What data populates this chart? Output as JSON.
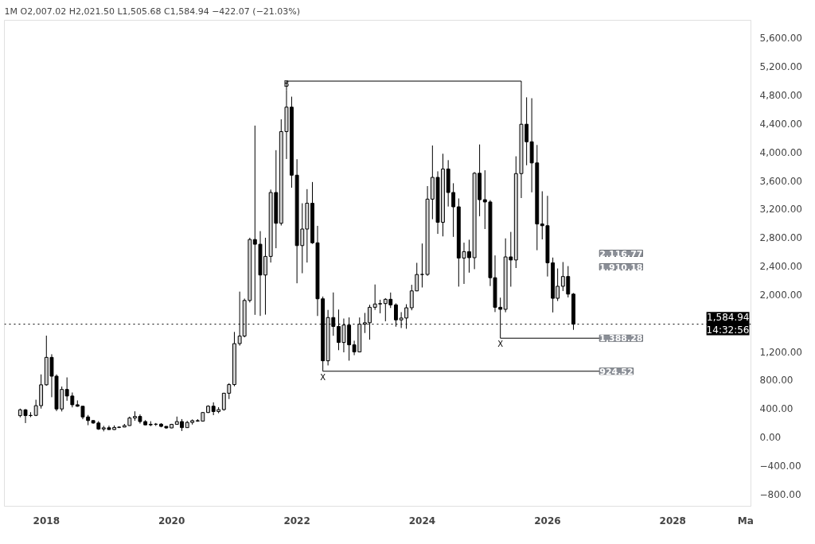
{
  "chart_data": {
    "type": "candlestick",
    "title": "1M  O2,007.02  H2,021.50  L1,505.68  C1,584.94  −422.07 (−21.03%)",
    "x": [
      "2017-08",
      "2017-09",
      "2017-10",
      "2017-11",
      "2017-12",
      "2018-01",
      "2018-02",
      "2018-03",
      "2018-04",
      "2018-05",
      "2018-06",
      "2018-07",
      "2018-08",
      "2018-09",
      "2018-10",
      "2018-11",
      "2018-12",
      "2019-01",
      "2019-02",
      "2019-03",
      "2019-04",
      "2019-05",
      "2019-06",
      "2019-07",
      "2019-08",
      "2019-09",
      "2019-10",
      "2019-11",
      "2019-12",
      "2020-01",
      "2020-02",
      "2020-03",
      "2020-04",
      "2020-05",
      "2020-06",
      "2020-07",
      "2020-08",
      "2020-09",
      "2020-10",
      "2020-11",
      "2020-12",
      "2021-01",
      "2021-02",
      "2021-03",
      "2021-04",
      "2021-05",
      "2021-06",
      "2021-07",
      "2021-08",
      "2021-09",
      "2021-10",
      "2021-11",
      "2021-12",
      "2022-01",
      "2022-02",
      "2022-03",
      "2022-04",
      "2022-05",
      "2022-06",
      "2022-07",
      "2022-08",
      "2022-09",
      "2022-10",
      "2022-11",
      "2022-12",
      "2023-01",
      "2023-02",
      "2023-03",
      "2023-04",
      "2023-05",
      "2023-06",
      "2023-07",
      "2023-08",
      "2023-09",
      "2023-10",
      "2023-11",
      "2023-12",
      "2024-01",
      "2024-02",
      "2024-03",
      "2024-04",
      "2024-05",
      "2024-06",
      "2024-07",
      "2024-08",
      "2024-09",
      "2024-10",
      "2024-11",
      "2024-12",
      "2025-01",
      "2025-02",
      "2025-03",
      "2025-04",
      "2025-05",
      "2025-06",
      "2025-07",
      "2025-08",
      "2025-09",
      "2025-10",
      "2025-11",
      "2025-12",
      "2026-01",
      "2026-02",
      "2026-03",
      "2026-04",
      "2026-05",
      "2026-06"
    ],
    "ohlc": [
      [
        301,
        400,
        278,
        383
      ],
      [
        383,
        394,
        197,
        302
      ],
      [
        302,
        350,
        280,
        305
      ],
      [
        305,
        525,
        295,
        441
      ],
      [
        441,
        880,
        400,
        734
      ],
      [
        734,
        1424,
        722,
        1119
      ],
      [
        1119,
        1163,
        560,
        855
      ],
      [
        855,
        880,
        365,
        395
      ],
      [
        395,
        710,
        360,
        669
      ],
      [
        669,
        838,
        510,
        577
      ],
      [
        577,
        626,
        417,
        454
      ],
      [
        454,
        515,
        426,
        433
      ],
      [
        433,
        434,
        251,
        283
      ],
      [
        283,
        311,
        167,
        232
      ],
      [
        232,
        236,
        188,
        198
      ],
      [
        198,
        225,
        101,
        113
      ],
      [
        113,
        158,
        81,
        131
      ],
      [
        131,
        161,
        102,
        106
      ],
      [
        106,
        164,
        101,
        136
      ],
      [
        136,
        147,
        126,
        141
      ],
      [
        141,
        185,
        140,
        162
      ],
      [
        162,
        288,
        158,
        268
      ],
      [
        268,
        362,
        230,
        290
      ],
      [
        290,
        318,
        190,
        218
      ],
      [
        218,
        238,
        165,
        172
      ],
      [
        172,
        223,
        153,
        180
      ],
      [
        180,
        198,
        157,
        182
      ],
      [
        182,
        196,
        138,
        151
      ],
      [
        151,
        153,
        117,
        129
      ],
      [
        129,
        186,
        126,
        179
      ],
      [
        179,
        288,
        176,
        218
      ],
      [
        218,
        253,
        86,
        133
      ],
      [
        133,
        227,
        130,
        206
      ],
      [
        206,
        248,
        176,
        231
      ],
      [
        231,
        252,
        216,
        225
      ],
      [
        225,
        349,
        222,
        345
      ],
      [
        345,
        446,
        339,
        434
      ],
      [
        434,
        488,
        308,
        359
      ],
      [
        359,
        420,
        335,
        386
      ],
      [
        386,
        622,
        372,
        616
      ],
      [
        616,
        757,
        534,
        737
      ],
      [
        737,
        1476,
        714,
        1312
      ],
      [
        1312,
        2042,
        1284,
        1418
      ],
      [
        1418,
        1944,
        1400,
        1918
      ],
      [
        1918,
        2798,
        1890,
        2773
      ],
      [
        2773,
        4372,
        1716,
        2707
      ],
      [
        2707,
        2891,
        1701,
        2275
      ],
      [
        2275,
        2798,
        1719,
        2536
      ],
      [
        2536,
        3474,
        2450,
        3433
      ],
      [
        3433,
        4027,
        2651,
        3001
      ],
      [
        3001,
        4460,
        2970,
        4288
      ],
      [
        4288,
        4868,
        3903,
        4631
      ],
      [
        4631,
        4778,
        3500,
        3676
      ],
      [
        3676,
        3900,
        2159,
        2688
      ],
      [
        2688,
        3282,
        2300,
        2920
      ],
      [
        2920,
        3480,
        2450,
        3282
      ],
      [
        3282,
        3580,
        2712,
        2727
      ],
      [
        2727,
        2965,
        1700,
        1941
      ],
      [
        1941,
        1973,
        924.52,
        1071
      ],
      [
        1071,
        1785,
        1006,
        1678
      ],
      [
        1678,
        2030,
        1422,
        1553
      ],
      [
        1553,
        1790,
        1220,
        1328
      ],
      [
        1328,
        1664,
        1190,
        1572
      ],
      [
        1572,
        1680,
        1073,
        1295
      ],
      [
        1295,
        1353,
        1150,
        1196
      ],
      [
        1196,
        1679,
        1190,
        1585
      ],
      [
        1585,
        1743,
        1461,
        1605
      ],
      [
        1605,
        1857,
        1368,
        1822
      ],
      [
        1822,
        2142,
        1785,
        1868
      ],
      [
        1868,
        1928,
        1738,
        1874
      ],
      [
        1874,
        1950,
        1626,
        1934
      ],
      [
        1934,
        2029,
        1812,
        1856
      ],
      [
        1856,
        1877,
        1550,
        1645
      ],
      [
        1645,
        1754,
        1531,
        1671
      ],
      [
        1671,
        1865,
        1520,
        1815
      ],
      [
        1815,
        2138,
        1780,
        2052
      ],
      [
        2052,
        2446,
        2048,
        2282
      ],
      [
        2282,
        2717,
        2100,
        2283
      ],
      [
        2283,
        3523,
        2264,
        3340
      ],
      [
        3340,
        4093,
        3058,
        3645
      ],
      [
        3645,
        3730,
        2852,
        3015
      ],
      [
        3015,
        3977,
        2817,
        3763
      ],
      [
        3763,
        3887,
        3236,
        3433
      ],
      [
        3433,
        3563,
        2810,
        3232
      ],
      [
        3232,
        3350,
        2112,
        2513
      ],
      [
        2513,
        2729,
        2150,
        2603
      ],
      [
        2603,
        2770,
        2308,
        2518
      ],
      [
        2518,
        3720,
        2357,
        3703
      ],
      [
        3703,
        4107,
        3100,
        3332
      ],
      [
        3332,
        3745,
        2920,
        3300
      ],
      [
        3300,
        3326,
        2120,
        2237
      ],
      [
        2237,
        2550,
        1755,
        1822
      ],
      [
        1822,
        1957,
        1388.28,
        1793
      ],
      [
        1793,
        2789,
        1752,
        2529
      ],
      [
        2529,
        2880,
        2111,
        2486
      ],
      [
        2486,
        3941,
        2373,
        3698
      ],
      [
        3698,
        4956,
        3355,
        4391
      ],
      [
        4391,
        4769,
        3815,
        4145
      ],
      [
        4145,
        4756,
        3435,
        3848
      ],
      [
        3848,
        4100,
        2623,
        2991
      ],
      [
        2991,
        3450,
        2775,
        2967
      ],
      [
        2967,
        3386,
        2254,
        2446
      ],
      [
        2446,
        2520,
        1750,
        1948
      ],
      [
        1948,
        2367,
        1910.18,
        2116.77
      ],
      [
        2116.77,
        2457,
        2050,
        2254
      ],
      [
        2254,
        2400,
        1960,
        2007.02
      ],
      [
        2007.02,
        2021.5,
        1505.68,
        1584.94
      ]
    ],
    "colors": [
      "#d4d4d4",
      "#000000",
      "#d4d4d4",
      "#d4d4d4",
      "#d4d4d4",
      "#d4d4d4",
      "#000000",
      "#000000",
      "#d4d4d4",
      "#000000",
      "#000000",
      "#000000",
      "#000000",
      "#000000",
      "#000000",
      "#000000",
      "#d4d4d4",
      "#000000",
      "#d4d4d4",
      "#d4d4d4",
      "#d4d4d4",
      "#d4d4d4",
      "#d4d4d4",
      "#000000",
      "#000000",
      "#d4d4d4",
      "#d4d4d4",
      "#000000",
      "#000000",
      "#d4d4d4",
      "#d4d4d4",
      "#000000",
      "#d4d4d4",
      "#d4d4d4",
      "#000000",
      "#d4d4d4",
      "#d4d4d4",
      "#000000",
      "#d4d4d4",
      "#d4d4d4",
      "#d4d4d4",
      "#d4d4d4",
      "#d4d4d4",
      "#d4d4d4",
      "#d4d4d4",
      "#000000",
      "#000000",
      "#d4d4d4",
      "#d4d4d4",
      "#000000",
      "#d4d4d4",
      "#d4d4d4",
      "#000000",
      "#000000",
      "#d4d4d4",
      "#d4d4d4",
      "#000000",
      "#000000",
      "#000000",
      "#d4d4d4",
      "#000000",
      "#000000",
      "#d4d4d4",
      "#000000",
      "#000000",
      "#d4d4d4",
      "#d4d4d4",
      "#d4d4d4",
      "#d4d4d4",
      "#d4d4d4",
      "#d4d4d4",
      "#000000",
      "#000000",
      "#d4d4d4",
      "#d4d4d4",
      "#d4d4d4",
      "#d4d4d4",
      "#d4d4d4",
      "#d4d4d4",
      "#d4d4d4",
      "#000000",
      "#d4d4d4",
      "#000000",
      "#000000",
      "#000000",
      "#d4d4d4",
      "#000000",
      "#d4d4d4",
      "#000000",
      "#000000",
      "#000000",
      "#000000",
      "#000000",
      "#d4d4d4",
      "#000000",
      "#d4d4d4",
      "#d4d4d4",
      "#000000",
      "#000000",
      "#000000",
      "#000000",
      "#000000",
      "#000000",
      "#d4d4d4",
      "#d4d4d4",
      "#000000",
      "#000000"
    ],
    "xlim": [
      "2017-05",
      "2029-04"
    ],
    "xticks": [
      {
        "value": "2018",
        "label": "2018"
      },
      {
        "value": "2020",
        "label": "2020"
      },
      {
        "value": "2022",
        "label": "2022"
      },
      {
        "value": "2024",
        "label": "2024"
      },
      {
        "value": "2026",
        "label": "2026"
      },
      {
        "value": "2028",
        "label": "2028"
      },
      {
        "value": "2029-03",
        "label": "Ma"
      }
    ],
    "ylim": [
      -970,
      5850
    ],
    "yticks": [
      {
        "value": -800,
        "label": "−800.00"
      },
      {
        "value": -400,
        "label": "−400.00"
      },
      {
        "value": 0,
        "label": "0.00"
      },
      {
        "value": 400,
        "label": "400.00"
      },
      {
        "value": 800,
        "label": "800.00"
      },
      {
        "value": 1200,
        "label": "1,200.00"
      },
      {
        "value": 2000,
        "label": "2,000.00"
      },
      {
        "value": 2400,
        "label": "2,400.00"
      },
      {
        "value": 2800,
        "label": "2,800.00"
      },
      {
        "value": 3200,
        "label": "3,200.00"
      },
      {
        "value": 3600,
        "label": "3,600.00"
      },
      {
        "value": 4000,
        "label": "4,000.00"
      },
      {
        "value": 4400,
        "label": "4,400.00"
      },
      {
        "value": 4800,
        "label": "4,800.00"
      },
      {
        "value": 5200,
        "label": "5,200.00"
      },
      {
        "value": 5600,
        "label": "5,600.00"
      }
    ],
    "ref_lines": [
      {
        "axis": "y",
        "value": 1584.94,
        "label": "1,584.94 14:32:56",
        "color": "#000000",
        "line_style": "dotted"
      }
    ],
    "annotations": [
      {
        "text": "B",
        "x": "2021-11",
        "y": 4868
      },
      {
        "text": "X",
        "x": "2025-04",
        "y": 1388.28
      },
      {
        "text": "X",
        "x": "2022-06",
        "y": 924.52
      },
      "2,116.77",
      "1,910.18",
      {
        "text": "1,388.28",
        "x": "2025-04",
        "y": 1388.28
      },
      {
        "text": "924.52",
        "x": "2022-06",
        "y": 924.52
      }
    ],
    "grid": false
  }
}
